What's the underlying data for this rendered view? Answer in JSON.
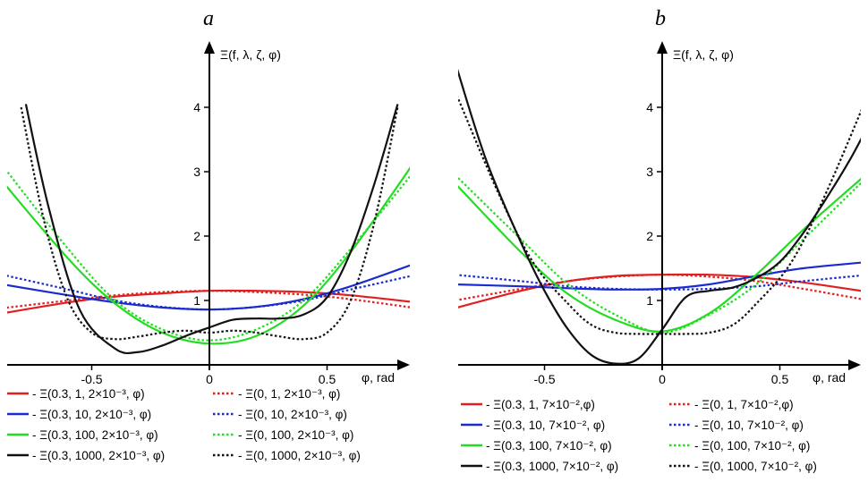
{
  "chart_data": [
    {
      "panel_label": "a",
      "type": "line",
      "ylabel": "Ξ(f, λ, ζ, φ)",
      "xlabel": "φ, rad",
      "xlim": [
        -0.88,
        0.88
      ],
      "ylim": [
        0,
        4.7
      ],
      "x_ticks": [
        {
          "value": -0.5,
          "label": "-0.5"
        },
        {
          "value": 0,
          "label": "0"
        },
        {
          "value": 0.5,
          "label": "0.5"
        }
      ],
      "y_ticks": [
        {
          "value": 1,
          "label": "1"
        },
        {
          "value": 2,
          "label": "2"
        },
        {
          "value": 3,
          "label": "3"
        },
        {
          "value": 4,
          "label": "4"
        }
      ],
      "legend_placement": "bottom, two columns",
      "series": [
        {
          "name": "Ξ(0.3, 1, 2×10⁻³, φ)",
          "color": "#e02020",
          "dash": "solid",
          "x": [
            -0.88,
            -0.6,
            -0.4,
            -0.2,
            0,
            0.2,
            0.4,
            0.6,
            0.88
          ],
          "y": [
            0.8,
            0.97,
            1.06,
            1.11,
            1.15,
            1.15,
            1.13,
            1.08,
            0.97
          ]
        },
        {
          "name": "Ξ(0, 1, 2×10⁻³, φ)",
          "color": "#e02020",
          "dash": "dotted",
          "x": [
            -0.88,
            -0.6,
            -0.4,
            -0.2,
            0,
            0.2,
            0.4,
            0.6,
            0.88
          ],
          "y": [
            0.88,
            1.0,
            1.08,
            1.13,
            1.15,
            1.13,
            1.09,
            1.02,
            0.88
          ]
        },
        {
          "name": "Ξ(0.3, 10, 2×10⁻³, φ)",
          "color": "#1a2bd0",
          "dash": "solid",
          "x": [
            -0.88,
            -0.6,
            -0.4,
            -0.2,
            0,
            0.2,
            0.4,
            0.6,
            0.88
          ],
          "y": [
            1.25,
            1.08,
            0.97,
            0.89,
            0.86,
            0.9,
            1.02,
            1.22,
            1.58
          ]
        },
        {
          "name": "Ξ(0, 10, 2×10⁻³, φ)",
          "color": "#1a2bd0",
          "dash": "dotted",
          "x": [
            -0.88,
            -0.6,
            -0.4,
            -0.2,
            0,
            0.2,
            0.4,
            0.6,
            0.88
          ],
          "y": [
            1.4,
            1.17,
            1.0,
            0.9,
            0.86,
            0.9,
            1.0,
            1.17,
            1.4
          ]
        },
        {
          "name": "Ξ(0.3, 100, 2×10⁻³, φ)",
          "color": "#22dd22",
          "dash": "solid",
          "x": [
            -0.88,
            -0.6,
            -0.4,
            -0.2,
            0,
            0.2,
            0.4,
            0.6,
            0.88
          ],
          "y": [
            2.85,
            1.65,
            0.95,
            0.5,
            0.33,
            0.45,
            0.92,
            1.75,
            3.2
          ]
        },
        {
          "name": "Ξ(0, 100, 2×10⁻³, φ)",
          "color": "#22dd22",
          "dash": "dotted",
          "x": [
            -0.88,
            -0.6,
            -0.4,
            -0.2,
            0,
            0.2,
            0.4,
            0.6,
            0.88
          ],
          "y": [
            3.1,
            1.8,
            1.0,
            0.55,
            0.38,
            0.55,
            1.0,
            1.8,
            3.05
          ]
        },
        {
          "name": "Ξ(0.3, 1000, 2×10⁻³, φ)",
          "color": "#111111",
          "dash": "solid",
          "x": [
            -0.78,
            -0.68,
            -0.55,
            -0.4,
            -0.3,
            -0.2,
            -0.1,
            0,
            0.1,
            0.2,
            0.3,
            0.4,
            0.5,
            0.6,
            0.7,
            0.8
          ],
          "y": [
            4.05,
            2.4,
            0.85,
            0.25,
            0.2,
            0.3,
            0.45,
            0.58,
            0.7,
            0.72,
            0.72,
            0.78,
            1.05,
            1.75,
            2.8,
            4.05
          ]
        },
        {
          "name": "Ξ(0, 1000, 2×10⁻³, φ)",
          "color": "#111111",
          "dash": "dotted",
          "x": [
            -0.8,
            -0.7,
            -0.6,
            -0.5,
            -0.4,
            -0.3,
            -0.2,
            -0.1,
            0,
            0.1,
            0.2,
            0.3,
            0.4,
            0.5,
            0.6,
            0.7,
            0.8
          ],
          "y": [
            4.0,
            2.2,
            1.0,
            0.5,
            0.4,
            0.44,
            0.5,
            0.53,
            0.5,
            0.53,
            0.5,
            0.44,
            0.4,
            0.5,
            1.0,
            2.2,
            4.0
          ]
        }
      ]
    },
    {
      "panel_label": "b",
      "type": "line",
      "ylabel": "Ξ(f, λ, ζ, φ)",
      "xlabel": "φ, rad",
      "xlim": [
        -0.88,
        0.88
      ],
      "ylim": [
        0,
        4.7
      ],
      "x_ticks": [
        {
          "value": -0.5,
          "label": "-0.5"
        },
        {
          "value": 0,
          "label": "0"
        },
        {
          "value": 0.5,
          "label": "0.5"
        }
      ],
      "y_ticks": [
        {
          "value": 1,
          "label": "1"
        },
        {
          "value": 2,
          "label": "2"
        },
        {
          "value": 3,
          "label": "3"
        },
        {
          "value": 4,
          "label": "4"
        }
      ],
      "legend_placement": "bottom, two columns",
      "series": [
        {
          "name": "Ξ(0.3, 1, 7×10⁻²,φ)",
          "color": "#e02020",
          "dash": "solid",
          "x": [
            -0.88,
            -0.6,
            -0.4,
            -0.2,
            0,
            0.2,
            0.4,
            0.6,
            0.88
          ],
          "y": [
            0.88,
            1.15,
            1.3,
            1.38,
            1.4,
            1.4,
            1.36,
            1.28,
            1.13
          ]
        },
        {
          "name": "Ξ(0, 1, 7×10⁻²,φ)",
          "color": "#e02020",
          "dash": "dotted",
          "x": [
            -0.88,
            -0.6,
            -0.4,
            -0.2,
            0,
            0.2,
            0.4,
            0.6,
            0.88
          ],
          "y": [
            1.0,
            1.18,
            1.3,
            1.37,
            1.4,
            1.37,
            1.3,
            1.18,
            1.0
          ]
        },
        {
          "name": "Ξ(0.3, 10, 7×10⁻², φ)",
          "color": "#1a2bd0",
          "dash": "solid",
          "x": [
            -0.88,
            -0.6,
            -0.4,
            -0.2,
            0,
            0.2,
            0.4,
            0.6,
            0.88
          ],
          "y": [
            1.25,
            1.22,
            1.19,
            1.17,
            1.18,
            1.25,
            1.38,
            1.5,
            1.6
          ]
        },
        {
          "name": "Ξ(0, 10, 7×10⁻², φ)",
          "color": "#1a2bd0",
          "dash": "dotted",
          "x": [
            -0.88,
            -0.6,
            -0.4,
            -0.2,
            0,
            0.2,
            0.4,
            0.6,
            0.88
          ],
          "y": [
            1.4,
            1.3,
            1.22,
            1.18,
            1.17,
            1.18,
            1.22,
            1.3,
            1.4
          ]
        },
        {
          "name": "Ξ(0.3, 100, 7×10⁻², φ)",
          "color": "#22dd22",
          "dash": "solid",
          "x": [
            -0.88,
            -0.6,
            -0.4,
            -0.2,
            0,
            0.2,
            0.4,
            0.6,
            0.88
          ],
          "y": [
            2.82,
            1.75,
            1.1,
            0.7,
            0.52,
            0.8,
            1.4,
            2.1,
            3.0
          ]
        },
        {
          "name": "Ξ(0, 100, 7×10⁻², φ)",
          "color": "#22dd22",
          "dash": "dotted",
          "x": [
            -0.88,
            -0.6,
            -0.4,
            -0.2,
            0,
            0.2,
            0.4,
            0.6,
            0.88
          ],
          "y": [
            2.95,
            1.95,
            1.25,
            0.78,
            0.5,
            0.78,
            1.25,
            1.95,
            2.95
          ]
        },
        {
          "name": "Ξ(0.3, 1000, 7×10⁻², φ)",
          "color": "#111111",
          "dash": "solid",
          "x": [
            -0.88,
            -0.75,
            -0.6,
            -0.5,
            -0.4,
            -0.3,
            -0.2,
            -0.1,
            0,
            0.1,
            0.2,
            0.3,
            0.4,
            0.5,
            0.6,
            0.7,
            0.8,
            0.88
          ],
          "y": [
            4.7,
            3.2,
            1.9,
            1.15,
            0.55,
            0.15,
            0.02,
            0.1,
            0.55,
            1.05,
            1.15,
            1.2,
            1.35,
            1.6,
            2.05,
            2.6,
            3.2,
            3.75
          ]
        },
        {
          "name": "Ξ(0, 1000, 7×10⁻², φ)",
          "color": "#111111",
          "dash": "dotted",
          "x": [
            -0.88,
            -0.7,
            -0.55,
            -0.4,
            -0.3,
            -0.2,
            -0.1,
            0,
            0.1,
            0.2,
            0.3,
            0.4,
            0.55,
            0.7,
            0.88
          ],
          "y": [
            4.25,
            2.7,
            1.6,
            0.95,
            0.62,
            0.5,
            0.48,
            0.48,
            0.48,
            0.5,
            0.62,
            0.95,
            1.6,
            2.7,
            4.25
          ]
        }
      ]
    }
  ]
}
